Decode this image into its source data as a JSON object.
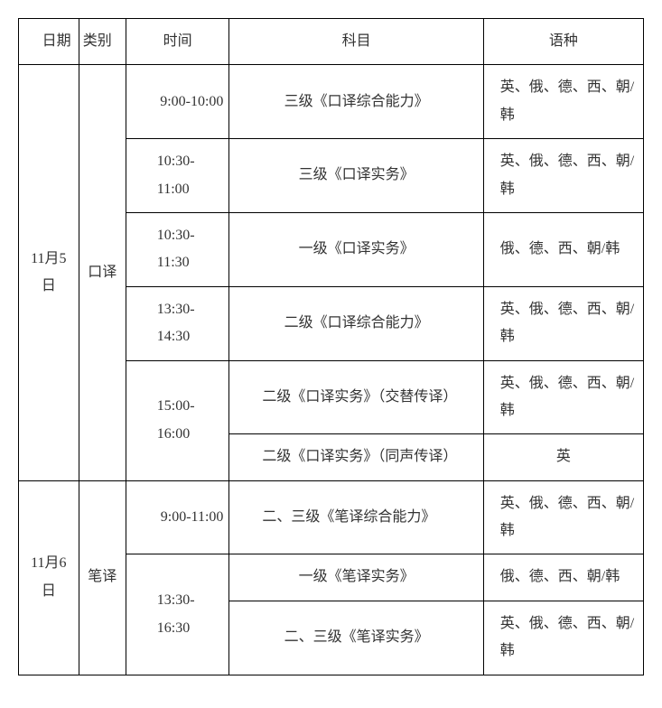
{
  "cols": {
    "date_width": 64,
    "type_width": 50,
    "time_width": 110,
    "subject_width": 270,
    "lang_width": 170
  },
  "header": {
    "date": "日期",
    "type": "类别",
    "time": "时间",
    "subject": "科目",
    "lang": "语种"
  },
  "rows": {
    "r1": {
      "date": "11月5日",
      "type": "口译",
      "time": "9:00-10:00",
      "subject": "三级《口译综合能力》",
      "lang": "英、俄、德、西、朝/韩"
    },
    "r2": {
      "time": "10:30-11:00",
      "subject": "三级《口译实务》",
      "lang": "英、俄、德、西、朝/韩"
    },
    "r3": {
      "time": "10:30-11:30",
      "subject": "一级《口译实务》",
      "lang": "俄、德、西、朝/韩"
    },
    "r4": {
      "time": "13:30-14:30",
      "subject": "二级《口译综合能力》",
      "lang": "英、俄、德、西、朝/韩"
    },
    "r5": {
      "time": "15:00-16:00",
      "subject": "二级《口译实务》（交替传译）",
      "lang": "英、俄、德、西、朝/韩"
    },
    "r6": {
      "subject": "二级《口译实务》（同声传译）",
      "lang": "英"
    },
    "r7": {
      "date": "11月6日",
      "type": "笔译",
      "time": "9:00-11:00",
      "subject": "二、三级《笔译综合能力》",
      "lang": "英、俄、德、西、朝/韩"
    },
    "r8": {
      "time": "13:30-16:30",
      "subject": "一级《笔译实务》",
      "lang": "俄、德、西、朝/韩"
    },
    "r9": {
      "subject": "二、三级《笔译实务》",
      "lang": "英、俄、德、西、朝/韩"
    }
  },
  "style": {
    "border_color": "#000000",
    "text_color": "#333333",
    "background_color": "#ffffff",
    "font_family": "SimSun",
    "font_size_pt": 12,
    "line_height": 1.9
  }
}
